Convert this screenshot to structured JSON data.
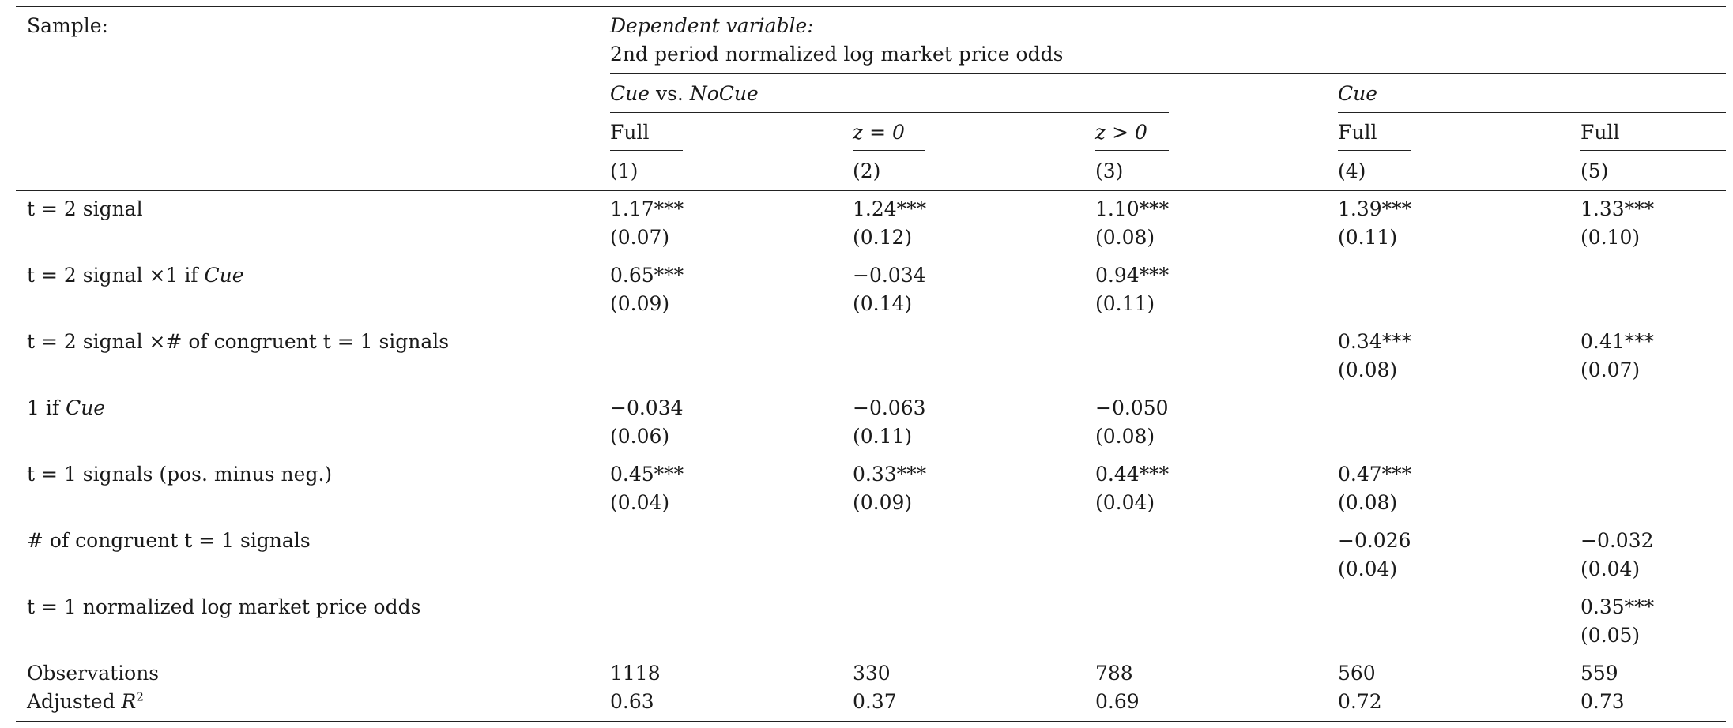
{
  "header": {
    "sample_label": "Sample:",
    "dependent_variable_label": "Dependent variable:",
    "dependent_variable": "2nd period normalized log market price odds",
    "group_cue_vs_nocue": {
      "cue": "Cue",
      "vs": " vs. ",
      "nocue": "NoCue"
    },
    "group_cue": "Cue",
    "subsamples": [
      "Full",
      "z = 0",
      "z > 0",
      "Full",
      "Full"
    ],
    "column_numbers": [
      "(1)",
      "(2)",
      "(3)",
      "(4)",
      "(5)"
    ]
  },
  "rows": [
    {
      "label": "t = 2 signal",
      "coef": [
        "1.17***",
        "1.24***",
        "1.10***",
        "1.39***",
        "1.33***"
      ],
      "se": [
        "(0.07)",
        "(0.12)",
        "(0.08)",
        "(0.11)",
        "(0.10)"
      ]
    },
    {
      "label_pre": "t = 2 signal ×1 if ",
      "label_ital": "Cue",
      "coef": [
        "0.65***",
        "−0.034",
        "0.94***",
        "",
        ""
      ],
      "se": [
        "(0.09)",
        "(0.14)",
        "(0.11)",
        "",
        ""
      ]
    },
    {
      "label": "t = 2 signal ×# of congruent t = 1 signals",
      "coef": [
        "",
        "",
        "",
        "0.34***",
        "0.41***"
      ],
      "se": [
        "",
        "",
        "",
        "(0.08)",
        "(0.07)"
      ]
    },
    {
      "label_pre": "1 if ",
      "label_ital": "Cue",
      "coef": [
        "−0.034",
        "−0.063",
        "−0.050",
        "",
        ""
      ],
      "se": [
        "(0.06)",
        "(0.11)",
        "(0.08)",
        "",
        ""
      ]
    },
    {
      "label": "t = 1 signals (pos. minus neg.)",
      "coef": [
        "0.45***",
        "0.33***",
        "0.44***",
        "0.47***",
        ""
      ],
      "se": [
        "(0.04)",
        "(0.09)",
        "(0.04)",
        "(0.08)",
        ""
      ]
    },
    {
      "label": "# of congruent t = 1 signals",
      "coef": [
        "",
        "",
        "",
        "−0.026",
        "−0.032"
      ],
      "se": [
        "",
        "",
        "",
        "(0.04)",
        "(0.04)"
      ]
    },
    {
      "label": "t = 1 normalized log market price odds",
      "coef": [
        "",
        "",
        "",
        "",
        "0.35***"
      ],
      "se": [
        "",
        "",
        "",
        "",
        "(0.05)"
      ]
    }
  ],
  "footer": {
    "observations_label": "Observations",
    "observations": [
      "1118",
      "330",
      "788",
      "560",
      "559"
    ],
    "r2_label": "Adjusted ",
    "r2_symbol": "R",
    "r2_sup": "2",
    "r2": [
      "0.63",
      "0.37",
      "0.69",
      "0.72",
      "0.73"
    ]
  }
}
